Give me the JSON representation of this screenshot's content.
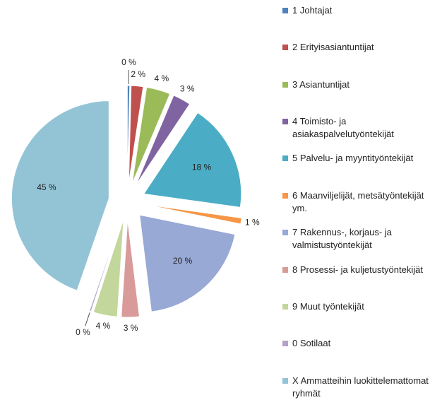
{
  "chart_data": {
    "type": "pie",
    "categories": [
      "1 Johtajat",
      "2 Erityisasiantuntijat",
      "3 Asiantuntijat",
      "4 Toimisto- ja asiakaspalvelutyöntekijät",
      "5 Palvelu- ja myyntityöntekijät",
      "6 Maanviljelijät, metsätyöntekijät ym.",
      "7 Rakennus-, korjaus- ja valmistustyöntekijät",
      "8 Prosessi- ja kuljetustyöntekijät",
      "9 Muut työntekijät",
      "0 Sotilaat",
      "X Ammatteihin luokittelemattomat ryhmät"
    ],
    "values": [
      0.4,
      2,
      4,
      3,
      18,
      1,
      20,
      3,
      4,
      0.3,
      45
    ],
    "value_labels": [
      "0 %",
      "2 %",
      "4 %",
      "3 %",
      "18 %",
      "1 %",
      "20 %",
      "3 %",
      "4 %",
      "0 %",
      "45 %"
    ],
    "colors": [
      "#4f81bd",
      "#c0504d",
      "#9bbb59",
      "#8064a2",
      "#4bacc6",
      "#f79646",
      "#97a9d4",
      "#d99a9a",
      "#c3d69b",
      "#b3a2c7",
      "#93c4d6"
    ],
    "legend": "right"
  }
}
